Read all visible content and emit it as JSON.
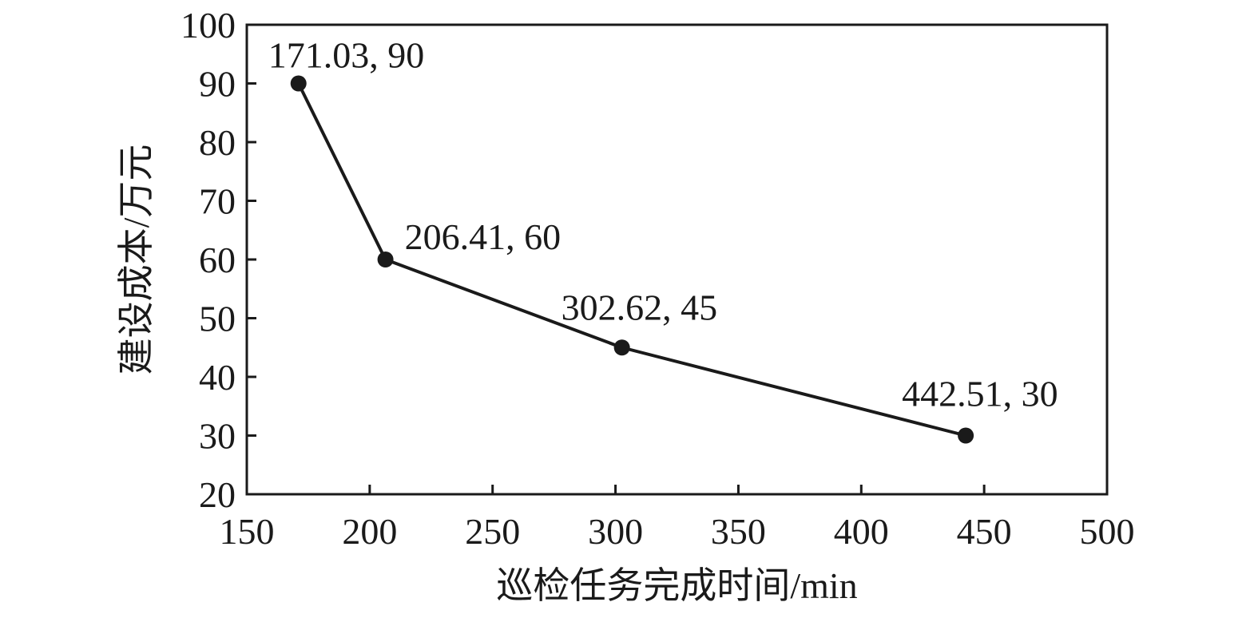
{
  "chart_data": {
    "type": "line",
    "title": "",
    "xlabel": "巡检任务完成时间/min",
    "ylabel": "建设成本/万元",
    "xlim": [
      150,
      500
    ],
    "ylim": [
      20,
      100
    ],
    "x_ticks": [
      150,
      200,
      250,
      300,
      350,
      400,
      450,
      500
    ],
    "y_ticks": [
      20,
      30,
      40,
      50,
      60,
      70,
      80,
      90,
      100
    ],
    "grid": false,
    "legend": "none",
    "colors": {
      "line": "#1a1a1a",
      "marker": "#1a1a1a",
      "axis": "#1a1a1a"
    },
    "series": [
      {
        "x": [
          171.03,
          206.41,
          302.62,
          442.51
        ],
        "y": [
          90,
          60,
          45,
          30
        ]
      }
    ],
    "annotations": [
      {
        "text": "171.03, 90",
        "x": 171.03,
        "y": 90
      },
      {
        "text": "206.41, 60",
        "x": 206.41,
        "y": 60
      },
      {
        "text": "302.62, 45",
        "x": 302.62,
        "y": 45
      },
      {
        "text": "442.51, 30",
        "x": 442.51,
        "y": 30
      }
    ]
  }
}
